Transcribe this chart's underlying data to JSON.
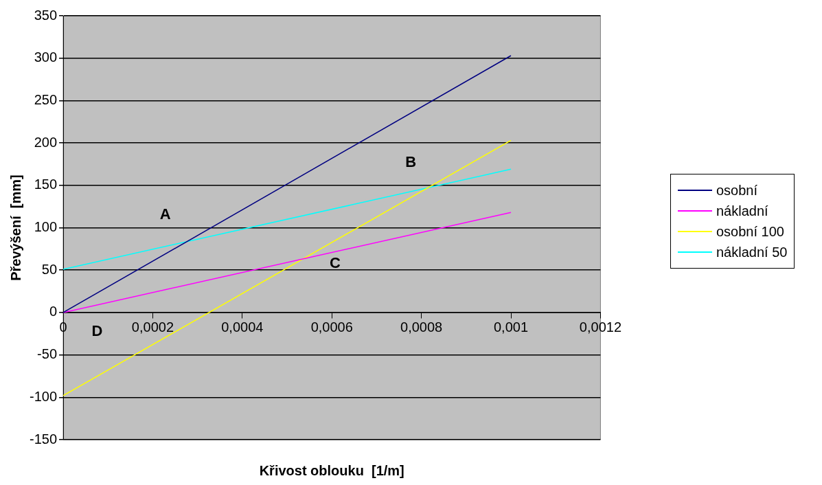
{
  "chart_data": {
    "type": "line",
    "xlabel": "Křivost oblouku  [1/m]",
    "ylabel": "Převýšení  [mm]",
    "x": [
      0,
      0.001
    ],
    "xlim": [
      0,
      0.0012
    ],
    "xticks": [
      {
        "value": 0,
        "label": "0"
      },
      {
        "value": 0.0002,
        "label": "0,0002"
      },
      {
        "value": 0.0004,
        "label": "0,0004"
      },
      {
        "value": 0.0006,
        "label": "0,0006"
      },
      {
        "value": 0.0008,
        "label": "0,0008"
      },
      {
        "value": 0.001,
        "label": "0,001"
      },
      {
        "value": 0.0012,
        "label": "0,0012"
      }
    ],
    "ylim": [
      -150,
      350
    ],
    "yticks": [
      -150,
      -100,
      -50,
      0,
      50,
      100,
      150,
      200,
      250,
      300,
      350
    ],
    "series": [
      {
        "name": "osobní",
        "color": "#000080",
        "values": [
          0,
          303
        ]
      },
      {
        "name": "nákladní",
        "color": "#ff00ff",
        "values": [
          0,
          118
        ]
      },
      {
        "name": "osobní 100",
        "color": "#ffff00",
        "values": [
          -98,
          203
        ]
      },
      {
        "name": "nákladní 50",
        "color": "#00ffff",
        "values": [
          51,
          169
        ]
      }
    ],
    "annotations": [
      "A",
      "B",
      "C",
      "D"
    ],
    "grid": "y",
    "legend": "right",
    "marker": "none",
    "line_style": "solid"
  }
}
